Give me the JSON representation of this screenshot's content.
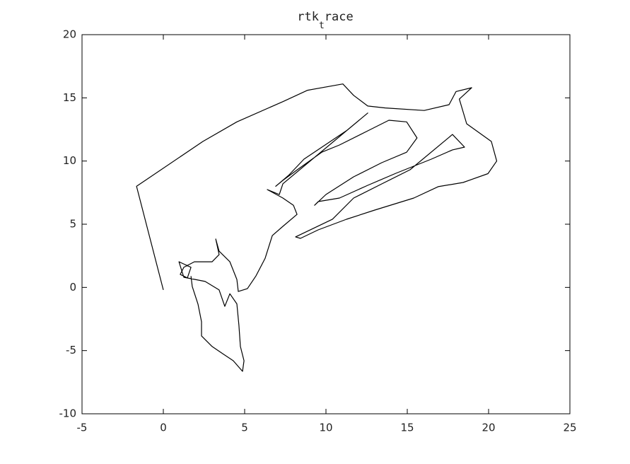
{
  "chart_data": {
    "type": "line",
    "title": [
      "rtk",
      "t",
      "race"
    ],
    "x": [
      0,
      -1.65,
      2.43,
      4.52,
      7.35,
      8.87,
      11.04,
      11.7,
      12.57,
      13.65,
      16.04,
      17.57,
      18.0,
      18.96,
      18.2,
      18.65,
      20.17,
      20.5,
      19.96,
      18.43,
      16.9,
      15.4,
      13.0,
      11.26,
      9.52,
      8.43,
      8.13,
      10.4,
      11.7,
      13.43,
      15.17,
      17.78,
      18.52,
      17.78,
      16.48,
      14.3,
      12.57,
      10.83,
      9.52,
      9.3,
      10.0,
      11.7,
      13.43,
      14.96,
      15.6,
      14.96,
      13.87,
      12.57,
      10.83,
      9.74,
      8.22,
      7.35,
      6.91,
      7.7,
      8.65,
      11.26,
      12.57,
      7.35,
      7.13,
      6.39,
      7.35,
      8.0,
      8.22,
      7.35,
      6.7,
      6.26,
      5.7,
      5.17,
      4.61,
      4.52,
      4.09,
      3.43,
      3.22,
      3.43,
      3.0,
      1.91,
      1.26,
      1.04,
      1.48,
      1.7,
      0.96,
      1.26,
      2.57,
      3.43,
      3.78,
      4.09,
      4.52,
      4.65,
      4.74,
      4.96,
      4.87,
      4.3,
      3.65,
      3.0,
      2.35,
      2.35,
      2.13,
      1.78,
      1.7
    ],
    "series": [
      {
        "color": "#000000",
        "values": [
          -0.2,
          8.0,
          11.55,
          13.1,
          14.7,
          15.6,
          16.1,
          15.2,
          14.35,
          14.2,
          14.0,
          14.46,
          15.5,
          15.8,
          14.9,
          12.95,
          11.55,
          10.0,
          9.0,
          8.3,
          7.97,
          7.07,
          6.12,
          5.39,
          4.55,
          3.88,
          4.0,
          5.4,
          7.07,
          8.19,
          9.31,
          12.1,
          11.1,
          10.88,
          10.15,
          9.03,
          8.08,
          7.07,
          6.79,
          6.5,
          7.35,
          8.75,
          9.87,
          10.7,
          11.83,
          13.1,
          13.23,
          12.39,
          11.27,
          10.7,
          9.3,
          8.47,
          8.0,
          8.86,
          10.15,
          12.4,
          13.8,
          8.2,
          7.35,
          7.74,
          7.07,
          6.5,
          5.78,
          4.83,
          4.1,
          2.31,
          0.92,
          -0.1,
          -0.32,
          0.63,
          2.03,
          2.87,
          3.83,
          2.6,
          2.03,
          2.03,
          1.59,
          1.03,
          0.75,
          1.59,
          2.03,
          0.8,
          0.47,
          -0.2,
          -1.5,
          -0.5,
          -1.3,
          -3.0,
          -4.68,
          -5.8,
          -6.64,
          -5.8,
          -5.24,
          -4.68,
          -3.84,
          -2.72,
          -1.32,
          0.07,
          0.9
        ]
      }
    ],
    "xlim": [
      -5,
      25
    ],
    "xticks": [
      -5,
      0,
      5,
      10,
      15,
      20,
      25
    ],
    "ylim": [
      -10,
      20
    ],
    "yticks": [
      -10,
      -5,
      0,
      5,
      10,
      15,
      20
    ]
  }
}
